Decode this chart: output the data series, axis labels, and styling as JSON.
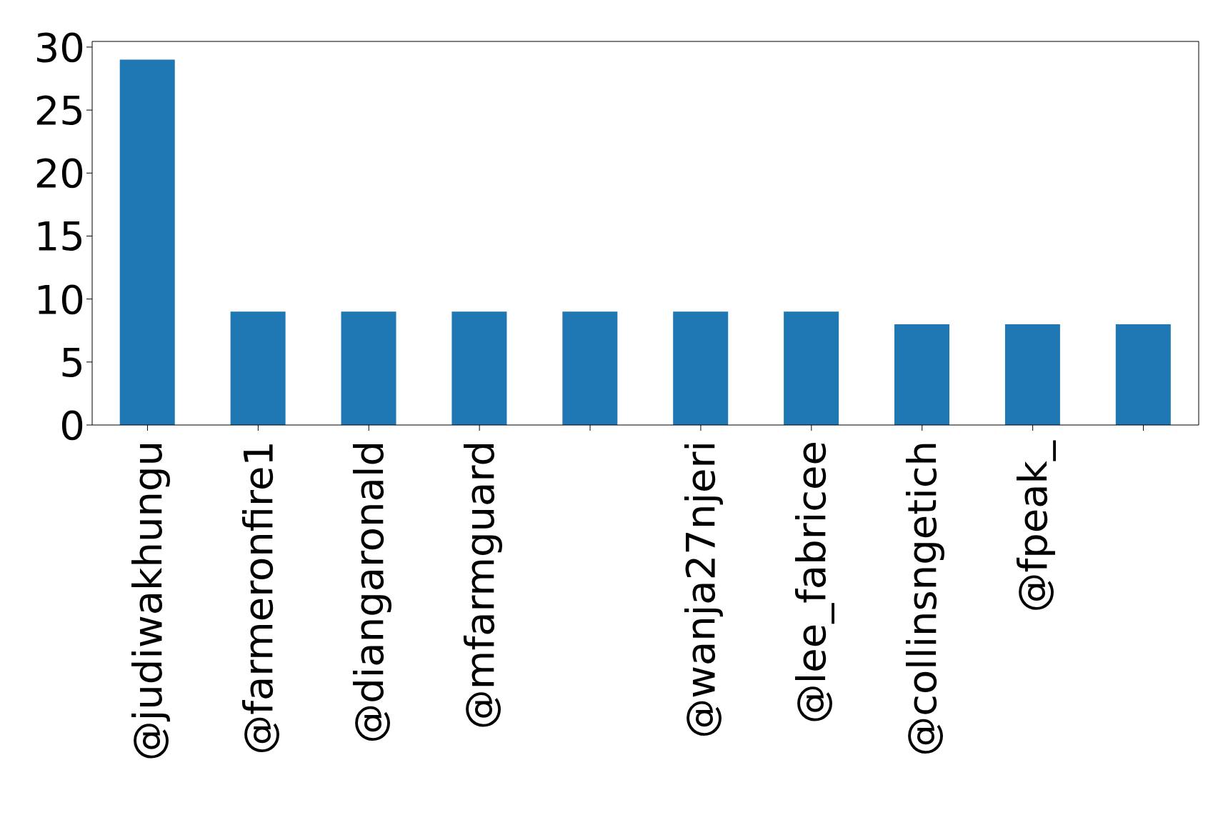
{
  "chart_data": {
    "type": "bar",
    "categories": [
      "@judiwakhungu",
      "@farmeronfire1",
      "@diangaronald",
      "@mfarmguard",
      null,
      "@wanja27njeri",
      "@lee_fabricee",
      "@collinsngetich",
      "@fpeak_",
      null
    ],
    "values": [
      29,
      9,
      9,
      9,
      9,
      9,
      9,
      8,
      8,
      8
    ],
    "color": "#1f77b4",
    "ylim": [
      0,
      30.45
    ],
    "yticks": [
      0,
      5,
      10,
      15,
      20,
      25,
      30
    ]
  }
}
